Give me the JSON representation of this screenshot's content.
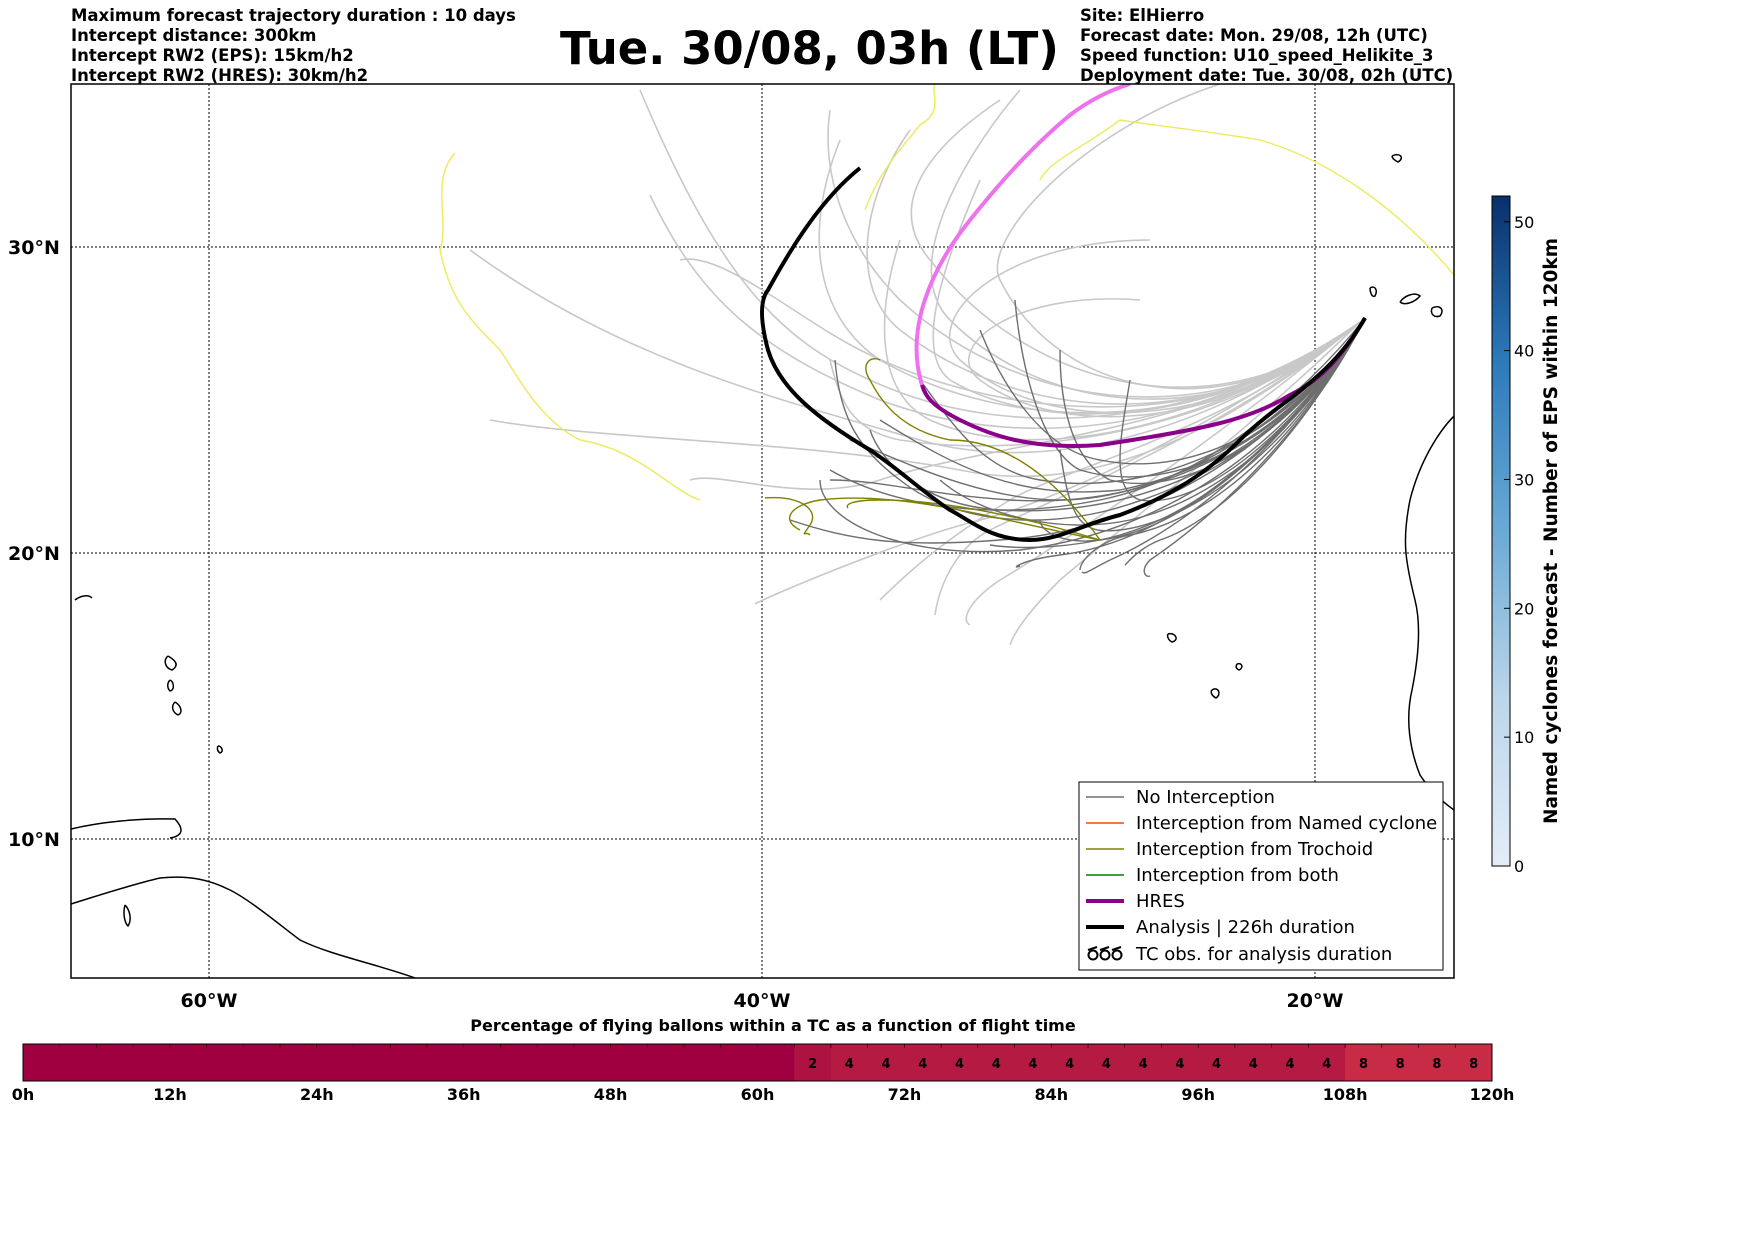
{
  "header": {
    "left_lines": [
      "Maximum forecast trajectory duration : 10 days",
      "Intercept distance: 300km",
      "Intercept RW2 (EPS):  15km/h2",
      "Intercept RW2 (HRES): 30km/h2"
    ],
    "title": "Tue. 30/08, 03h (LT)",
    "right_lines": [
      "Site: ElHierro",
      "Forecast date: Mon. 29/08, 12h (UTC)",
      "Speed function: U10_speed_Helikite_3",
      "Deployment date: Tue. 30/08, 02h (UTC)"
    ]
  },
  "map": {
    "lat_labels": [
      "30°N",
      "20°N",
      "10°N"
    ],
    "lon_labels": [
      "60°W",
      "40°W",
      "20°W"
    ],
    "colors": {
      "no_interception": "#6e6e6e",
      "named_cyclone": "#ff4500",
      "trochoid": "#808000",
      "both": "#008000",
      "hres": "#8b008b",
      "analysis": "#000000",
      "far_track": "#c8c8c8",
      "yellow_track": "#eeea5a",
      "pink_track": "#ee72ee"
    }
  },
  "legend": {
    "items": [
      {
        "label": "No Interception"
      },
      {
        "label": "Interception from Named cyclone"
      },
      {
        "label": "Interception from Trochoid"
      },
      {
        "label": "Interception from both"
      },
      {
        "label": "HRES"
      },
      {
        "label": "Analysis | 226h duration"
      },
      {
        "label": "TC obs. for analysis duration"
      }
    ]
  },
  "colorbar_right": {
    "label": "Named cyclones forecast - Number of EPS within 120km",
    "ticks": [
      "0",
      "10",
      "20",
      "30",
      "40",
      "50"
    ],
    "color_low": "#e3edf8",
    "color_high": "#08306b"
  },
  "bottom_bar": {
    "title": "Percentage of flying ballons within a TC as a function of flight time",
    "cells": [
      "",
      "",
      "",
      "",
      "",
      "",
      "",
      "",
      "",
      "",
      "",
      "",
      "",
      "",
      "",
      "",
      "",
      "",
      "",
      "",
      "",
      "2",
      "4",
      "4",
      "4",
      "4",
      "4",
      "4",
      "4",
      "4",
      "4",
      "4",
      "4",
      "4",
      "4",
      "4",
      "8",
      "8",
      "8",
      "8"
    ],
    "tick_labels": [
      "0h",
      "12h",
      "24h",
      "36h",
      "48h",
      "60h",
      "72h",
      "84h",
      "96h",
      "108h",
      "120h"
    ],
    "colors": {
      "zero": "#a10040",
      "two": "#ae1241",
      "four": "#b51a43",
      "eight": "#c72b45"
    }
  }
}
